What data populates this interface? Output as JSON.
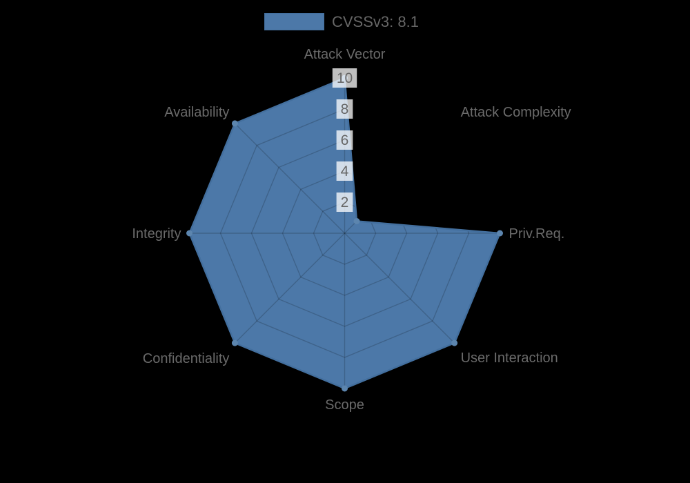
{
  "legend": {
    "label": "CVSSv3: 8.1"
  },
  "chart_data": {
    "type": "radar",
    "title": "",
    "categories": [
      "Attack Vector",
      "Attack Complexity",
      "Priv.Req.",
      "User Interaction",
      "Scope",
      "Confidentiality",
      "Integrity",
      "Availability"
    ],
    "series": [
      {
        "name": "CVSSv3: 8.1",
        "values": [
          10,
          1.1,
          10,
          10,
          10,
          10,
          10,
          10
        ]
      }
    ],
    "rmin": 0,
    "rmax": 10,
    "ticks": [
      2,
      4,
      6,
      8,
      10
    ],
    "grid": true,
    "legend_position": "top",
    "colors": {
      "background": "#000000",
      "fill": "#4c78a8",
      "border": "#436f9e",
      "point": "#5c85ae",
      "grid_line": "rgba(0,0,0,0.18)",
      "tick_backdrop": "rgba(255,255,255,0.75)",
      "tick_text": "#666666",
      "axis_label": "#6a6a6a",
      "legend_text": "#666666"
    }
  }
}
